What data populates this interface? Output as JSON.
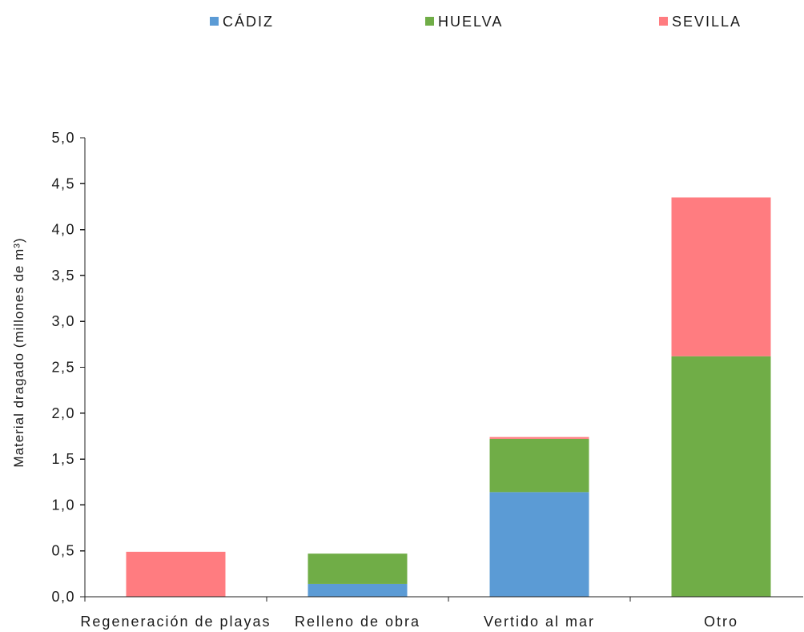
{
  "chart_data": {
    "type": "bar",
    "stacked": true,
    "categories": [
      "Regeneración de playas",
      "Relleno de obra",
      "Vertido al mar",
      "Otro"
    ],
    "series": [
      {
        "name": "CÁDIZ",
        "color": "#5B9BD5",
        "values": [
          0,
          0.14,
          1.14,
          0
        ]
      },
      {
        "name": "HUELVA",
        "color": "#70AD47",
        "values": [
          0,
          0.33,
          0.58,
          2.62
        ]
      },
      {
        "name": "SEVILLA",
        "color": "#FF7C80",
        "values": [
          0.49,
          0,
          0.02,
          1.73
        ]
      }
    ],
    "ylabel": "Material dragado (millones de m³)",
    "ylim": [
      0,
      5
    ],
    "yticks": [
      0,
      0.5,
      1,
      1.5,
      2,
      2.5,
      3,
      3.5,
      4,
      4.5,
      5
    ],
    "ytick_labels": [
      "0,0",
      "0,5",
      "1,0",
      "1,5",
      "2,0",
      "2,5",
      "3,0",
      "3,5",
      "4,0",
      "4,5",
      "5,0"
    ],
    "grid": false,
    "legend_position": "top"
  }
}
